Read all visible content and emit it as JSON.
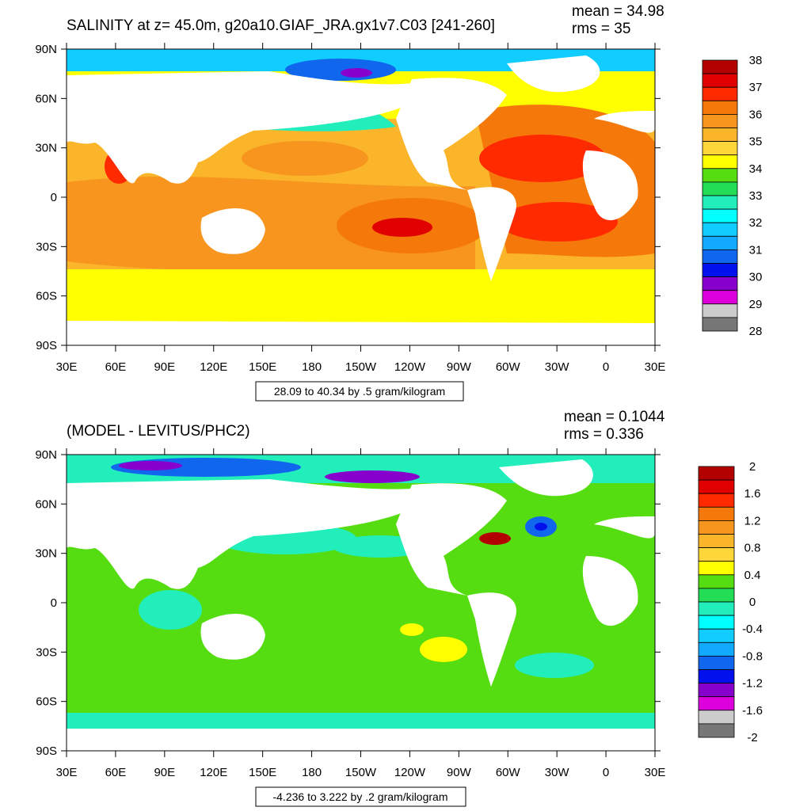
{
  "panels": [
    {
      "title": "SALINITY at z=  45.0m, g20a10.GIAF_JRA.gx1v7.C03 [241-260]",
      "mean": "mean = 34.98",
      "rms": "rms = 35",
      "range_label": "28.09 to 40.34 by .5 gram/kilogram",
      "lat_labels": [
        "90N",
        "60N",
        "30N",
        "0",
        "30S",
        "60S",
        "90S"
      ],
      "lon_labels": [
        "30E",
        "60E",
        "90E",
        "120E",
        "150E",
        "180",
        "150W",
        "120W",
        "90W",
        "60W",
        "30W",
        "0",
        "30E"
      ],
      "colorbar": {
        "labels": [
          "38",
          "37",
          "36",
          "35",
          "34",
          "33",
          "32",
          "31",
          "30",
          "29",
          "28"
        ],
        "colors": [
          "#b30000",
          "#e00000",
          "#ff2a00",
          "#f5780a",
          "#f7951f",
          "#fbb52b",
          "#ffd63a",
          "#ffff00",
          "#55dd11",
          "#22dd55",
          "#22eebb",
          "#00ffff",
          "#11ccff",
          "#11aaff",
          "#1166ee",
          "#0011ee",
          "#8800cc",
          "#dd00dd",
          "#cccccc",
          "#777777"
        ]
      }
    },
    {
      "title": "(MODEL - LEVITUS/PHC2)",
      "mean": "mean = 0.1044",
      "rms": "rms = 0.336",
      "range_label": "-4.236 to 3.222 by .2 gram/kilogram",
      "lat_labels": [
        "90N",
        "60N",
        "30N",
        "0",
        "30S",
        "60S",
        "90S"
      ],
      "lon_labels": [
        "30E",
        "60E",
        "90E",
        "120E",
        "150E",
        "180",
        "150W",
        "120W",
        "90W",
        "60W",
        "30W",
        "0",
        "30E"
      ],
      "colorbar": {
        "labels": [
          "2",
          "1.6",
          "1.2",
          "0.8",
          "0.4",
          "0",
          "-0.4",
          "-0.8",
          "-1.2",
          "-1.6",
          "-2"
        ],
        "colors": [
          "#b30000",
          "#e00000",
          "#ff2a00",
          "#f5780a",
          "#f7951f",
          "#fbb52b",
          "#ffd63a",
          "#ffff00",
          "#55dd11",
          "#22dd55",
          "#22eebb",
          "#00ffff",
          "#11ccff",
          "#11aaff",
          "#1166ee",
          "#0011ee",
          "#8800cc",
          "#dd00dd",
          "#cccccc",
          "#777777"
        ]
      }
    }
  ]
}
